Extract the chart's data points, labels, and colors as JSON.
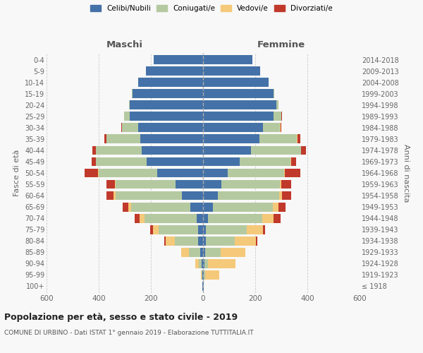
{
  "age_groups": [
    "100+",
    "95-99",
    "90-94",
    "85-89",
    "80-84",
    "75-79",
    "70-74",
    "65-69",
    "60-64",
    "55-59",
    "50-54",
    "45-49",
    "40-44",
    "35-39",
    "30-34",
    "25-29",
    "20-24",
    "15-19",
    "10-14",
    "5-9",
    "0-4"
  ],
  "birth_years": [
    "≤ 1918",
    "1919-1923",
    "1924-1928",
    "1929-1933",
    "1934-1938",
    "1939-1943",
    "1944-1948",
    "1949-1953",
    "1954-1958",
    "1959-1963",
    "1964-1968",
    "1969-1973",
    "1974-1978",
    "1979-1983",
    "1984-1988",
    "1989-1993",
    "1994-1998",
    "1999-2003",
    "2004-2008",
    "2009-2013",
    "2014-2018"
  ],
  "maschi": {
    "celibi": [
      3,
      4,
      5,
      10,
      18,
      20,
      25,
      50,
      80,
      105,
      175,
      215,
      235,
      240,
      250,
      280,
      280,
      270,
      250,
      220,
      190
    ],
    "coniugati": [
      0,
      2,
      12,
      45,
      90,
      150,
      200,
      225,
      255,
      230,
      225,
      195,
      175,
      130,
      60,
      22,
      5,
      2,
      0,
      0,
      0
    ],
    "vedovi": [
      0,
      2,
      12,
      30,
      35,
      22,
      18,
      12,
      8,
      4,
      3,
      2,
      2,
      1,
      0,
      0,
      0,
      0,
      0,
      0,
      0
    ],
    "divorziati": [
      0,
      0,
      0,
      0,
      5,
      10,
      18,
      22,
      28,
      30,
      50,
      15,
      12,
      8,
      4,
      2,
      0,
      0,
      0,
      0,
      0
    ]
  },
  "femmine": {
    "nubili": [
      2,
      4,
      5,
      8,
      12,
      12,
      18,
      38,
      58,
      70,
      95,
      140,
      185,
      215,
      230,
      270,
      280,
      270,
      250,
      220,
      190
    ],
    "coniugate": [
      0,
      4,
      15,
      60,
      110,
      155,
      210,
      230,
      235,
      225,
      215,
      195,
      190,
      145,
      65,
      30,
      10,
      3,
      0,
      0,
      0
    ],
    "vedove": [
      0,
      55,
      105,
      95,
      80,
      62,
      42,
      22,
      10,
      5,
      3,
      2,
      2,
      2,
      1,
      0,
      0,
      0,
      0,
      0,
      0
    ],
    "divorziate": [
      0,
      0,
      0,
      0,
      5,
      10,
      28,
      25,
      35,
      38,
      60,
      20,
      18,
      10,
      5,
      2,
      0,
      0,
      0,
      0,
      0
    ]
  },
  "colors": {
    "celibi": "#4472a8",
    "coniugati": "#b5c9a0",
    "vedovi": "#f5c97a",
    "divorziati": "#c0392b"
  },
  "xlim": 600,
  "title": "Popolazione per età, sesso e stato civile - 2019",
  "subtitle": "COMUNE DI URBINO - Dati ISTAT 1° gennaio 2019 - Elaborazione TUTTITALIA.IT",
  "ylabel": "Fasce di età",
  "ylabel_right": "Anni di nascita",
  "legend_labels": [
    "Celibi/Nubili",
    "Coniugati/e",
    "Vedovi/e",
    "Divorziati/e"
  ],
  "background_color": "#f8f8f8",
  "header_maschi": "Maschi",
  "header_femmine": "Femmine"
}
